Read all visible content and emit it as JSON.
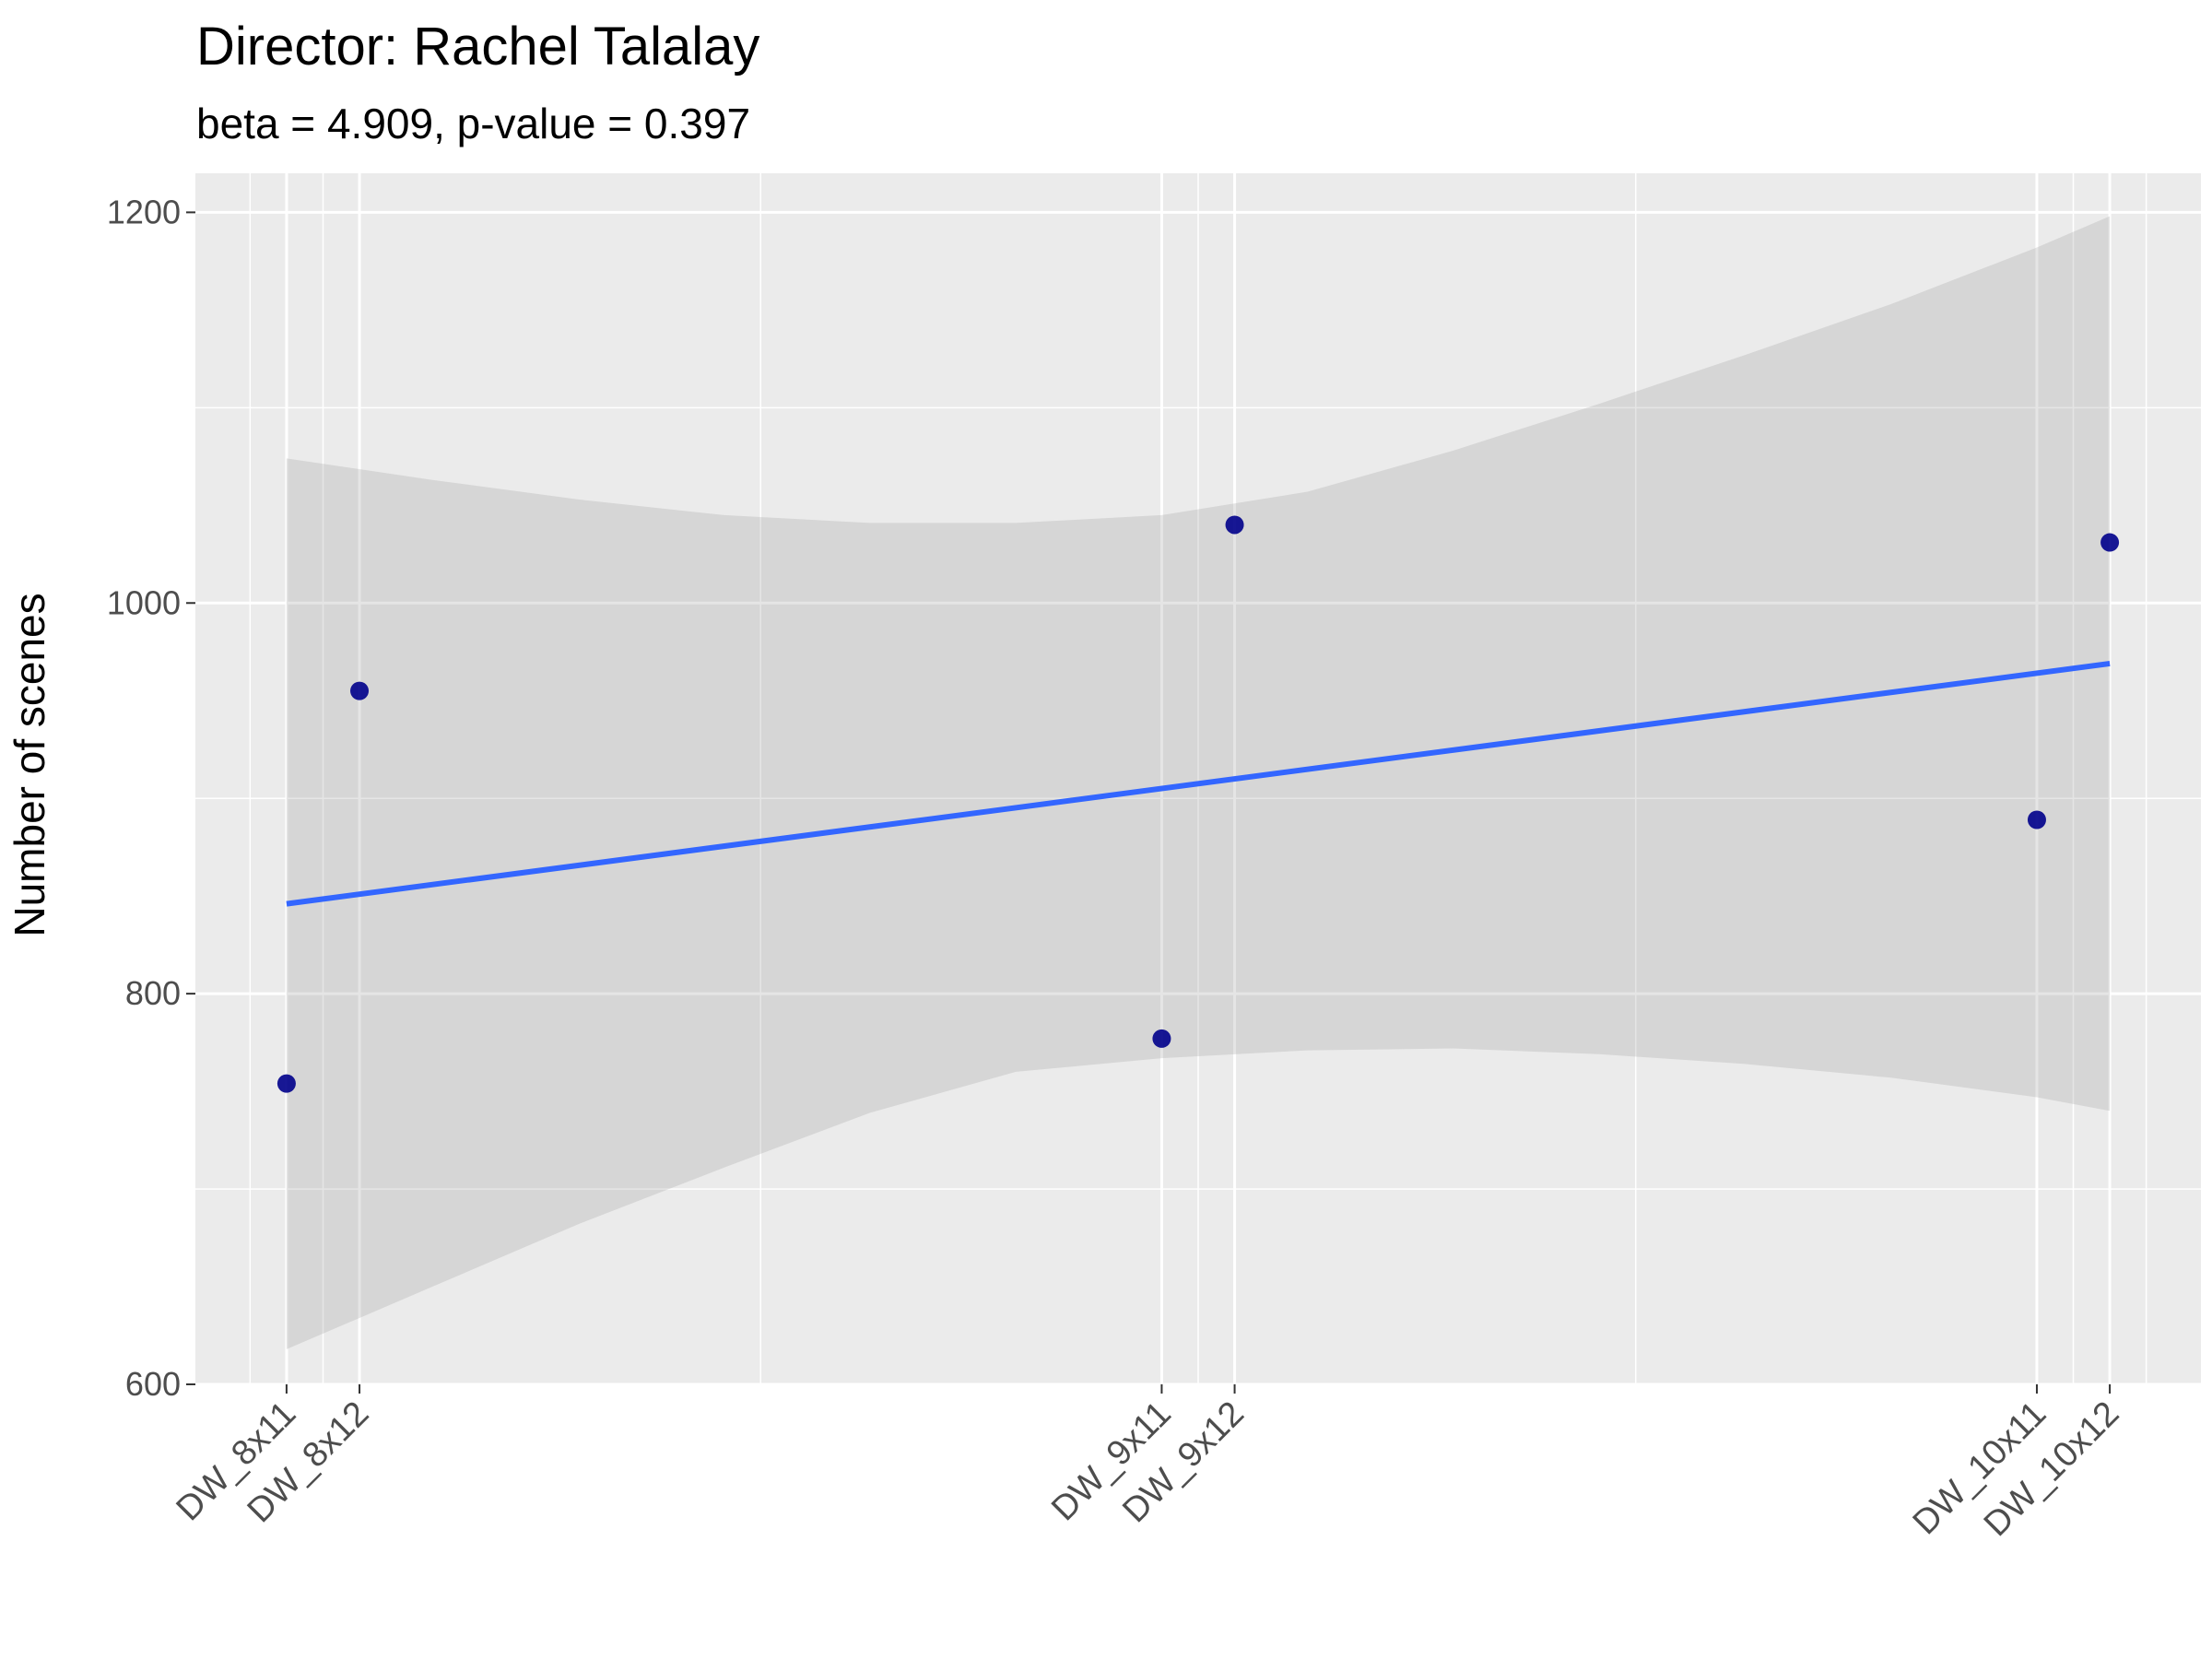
{
  "chart_data": {
    "type": "scatter",
    "title": "Director: Rachel Talalay",
    "subtitle": "beta = 4.909, p-value = 0.397",
    "xlabel": "",
    "ylabel": "Number of scenes",
    "categories": [
      "DW_8x11",
      "DW_8x12",
      "DW_9x11",
      "DW_9x12",
      "DW_10x11",
      "DW_10x12"
    ],
    "x_positions": [
      0,
      1,
      12,
      13,
      24,
      25
    ],
    "values": [
      754,
      955,
      777,
      1040,
      889,
      1031
    ],
    "ylim": [
      600,
      1220
    ],
    "y_ticks": [
      600,
      800,
      1000,
      1200
    ],
    "xlim": [
      -1.25,
      26.25
    ],
    "fit_line": {
      "x": [
        0,
        25
      ],
      "y": [
        846,
        969
      ]
    },
    "confidence_band": {
      "x": [
        0,
        2,
        4,
        6,
        8,
        10,
        12,
        14,
        16,
        18,
        20,
        22,
        24,
        25
      ],
      "upper": [
        1074,
        1063,
        1053,
        1045,
        1041,
        1041,
        1045,
        1057,
        1078,
        1102,
        1127,
        1153,
        1182,
        1198
      ],
      "lower": [
        618,
        650,
        682,
        711,
        739,
        760,
        767,
        771,
        772,
        769,
        764,
        757,
        747,
        740
      ]
    },
    "grid": true,
    "legend": "none",
    "colors": {
      "panel": "#ebebeb",
      "grid": "#ffffff",
      "band": "#d9d9d9",
      "fit_line": "#3366ff",
      "points": "#00008b"
    }
  }
}
